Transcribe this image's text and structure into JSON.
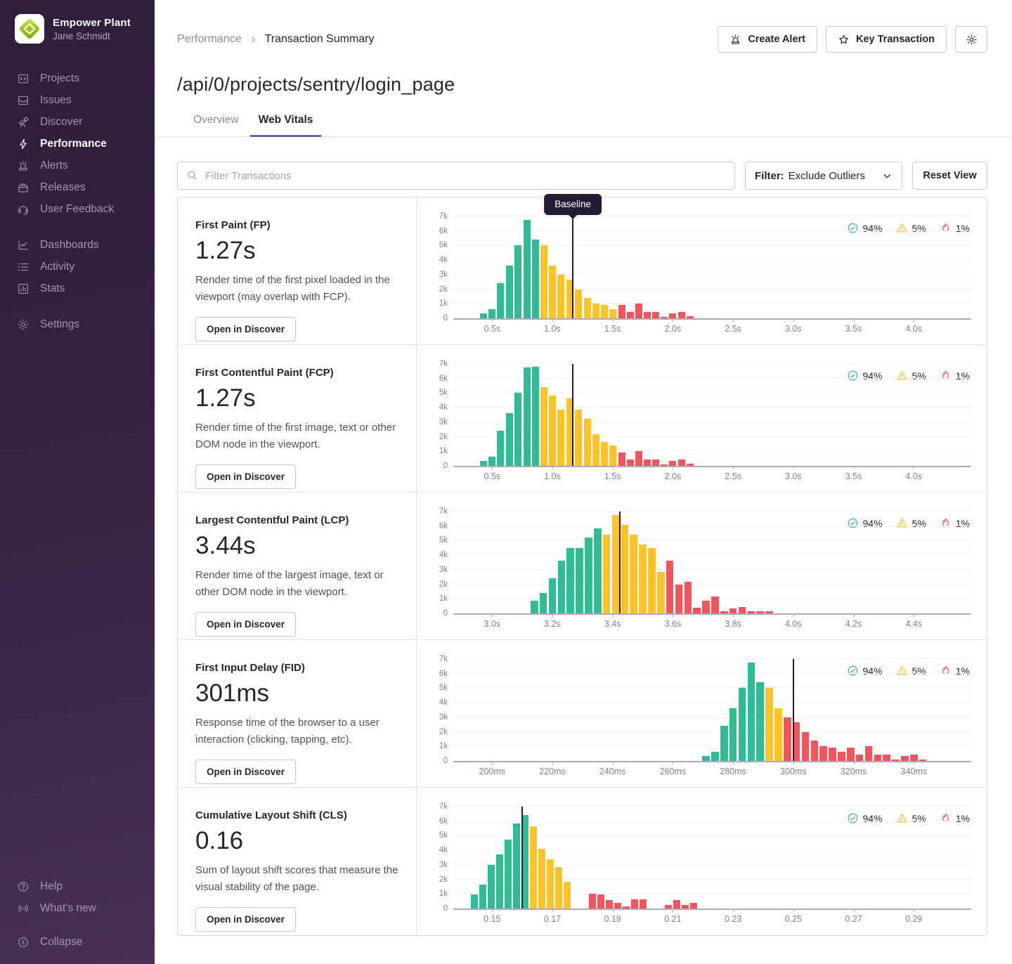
{
  "sidebar": {
    "org_name": "Empower Plant",
    "user_name": "Jane Schmidt",
    "primary": [
      {
        "label": "Projects"
      },
      {
        "label": "Issues"
      },
      {
        "label": "Discover"
      },
      {
        "label": "Performance",
        "active": true
      },
      {
        "label": "Alerts"
      },
      {
        "label": "Releases"
      },
      {
        "label": "User Feedback"
      }
    ],
    "secondary": [
      {
        "label": "Dashboards"
      },
      {
        "label": "Activity"
      },
      {
        "label": "Stats"
      }
    ],
    "tertiary": [
      {
        "label": "Settings"
      }
    ],
    "footer": [
      {
        "label": "Help"
      },
      {
        "label": "What’s new"
      }
    ],
    "collapse_label": "Collapse"
  },
  "header": {
    "breadcrumb_parent": "Performance",
    "breadcrumb_current": "Transaction Summary",
    "create_alert_label": "Create Alert",
    "key_transaction_label": "Key Transaction",
    "title": "/api/0/projects/sentry/login_page",
    "tabs": [
      {
        "label": "Overview",
        "active": false
      },
      {
        "label": "Web Vitals",
        "active": true
      }
    ]
  },
  "toolbar": {
    "search_placeholder": "Filter Transactions",
    "filter_label": "Filter:",
    "filter_value": "Exclude Outliers",
    "reset_label": "Reset View"
  },
  "baseline_tooltip": "Baseline",
  "colors": {
    "good": "#2fbc95",
    "meh": "#ffc227",
    "poor": "#f4555c",
    "baseline": "#231a36",
    "accent": "#6c5fc7"
  },
  "chart_data": [
    {
      "type": "bar",
      "name": "First Paint (FP)",
      "value": "1.27s",
      "description": "Render time of the first pixel loaded in the viewport (may overlap with FCP).",
      "button_label": "Open in Discover",
      "rates": {
        "good": "94%",
        "meh": "5%",
        "poor": "1%"
      },
      "ylim": [
        0,
        7000
      ],
      "yticks": [
        "0",
        "1k",
        "2k",
        "3k",
        "4k",
        "5k",
        "6k",
        "7k"
      ],
      "xticks": [
        "0.5s",
        "1.0s",
        "1.5s",
        "2.0s",
        "2.5s",
        "3.0s",
        "3.5s",
        "4.0s"
      ],
      "axis": {
        "tick0": 0.5,
        "tick_step": 0.5,
        "bar_width": 0.058
      },
      "baseline": 1.17,
      "show_baseline_tooltip": true,
      "bars": [
        {
          "x": 0.43,
          "y": 350,
          "status": "good"
        },
        {
          "x": 0.5,
          "y": 650,
          "status": "good"
        },
        {
          "x": 0.57,
          "y": 2400,
          "status": "good"
        },
        {
          "x": 0.645,
          "y": 3600,
          "status": "good"
        },
        {
          "x": 0.715,
          "y": 5000,
          "status": "good"
        },
        {
          "x": 0.79,
          "y": 6750,
          "status": "good"
        },
        {
          "x": 0.86,
          "y": 5400,
          "status": "good"
        },
        {
          "x": 0.93,
          "y": 5000,
          "status": "meh"
        },
        {
          "x": 1.0,
          "y": 3600,
          "status": "meh"
        },
        {
          "x": 1.07,
          "y": 3000,
          "status": "meh"
        },
        {
          "x": 1.145,
          "y": 2650,
          "status": "meh"
        },
        {
          "x": 1.215,
          "y": 2000,
          "status": "meh"
        },
        {
          "x": 1.29,
          "y": 1400,
          "status": "meh"
        },
        {
          "x": 1.36,
          "y": 1000,
          "status": "meh"
        },
        {
          "x": 1.43,
          "y": 900,
          "status": "meh"
        },
        {
          "x": 1.5,
          "y": 650,
          "status": "meh"
        },
        {
          "x": 1.575,
          "y": 900,
          "status": "poor"
        },
        {
          "x": 1.645,
          "y": 450,
          "status": "poor"
        },
        {
          "x": 1.72,
          "y": 1000,
          "status": "poor"
        },
        {
          "x": 1.79,
          "y": 450,
          "status": "poor"
        },
        {
          "x": 1.86,
          "y": 450,
          "status": "poor"
        },
        {
          "x": 1.93,
          "y": 120,
          "status": "poor"
        },
        {
          "x": 2.0,
          "y": 350,
          "status": "poor"
        },
        {
          "x": 2.075,
          "y": 450,
          "status": "poor"
        },
        {
          "x": 2.145,
          "y": 150,
          "status": "poor"
        }
      ]
    },
    {
      "type": "bar",
      "name": "First Contentful Paint (FCP)",
      "value": "1.27s",
      "description": "Render time of the first image, text or other DOM node in the viewport.",
      "button_label": "Open in Discover",
      "rates": {
        "good": "94%",
        "meh": "5%",
        "poor": "1%"
      },
      "ylim": [
        0,
        7000
      ],
      "yticks": [
        "0",
        "1k",
        "2k",
        "3k",
        "4k",
        "5k",
        "6k",
        "7k"
      ],
      "xticks": [
        "0.5s",
        "1.0s",
        "1.5s",
        "2.0s",
        "2.5s",
        "3.0s",
        "3.5s",
        "4.0s"
      ],
      "axis": {
        "tick0": 0.5,
        "tick_step": 0.5,
        "bar_width": 0.058
      },
      "baseline": 1.17,
      "show_baseline_tooltip": false,
      "bars": [
        {
          "x": 0.43,
          "y": 350,
          "status": "good"
        },
        {
          "x": 0.5,
          "y": 650,
          "status": "good"
        },
        {
          "x": 0.57,
          "y": 2400,
          "status": "good"
        },
        {
          "x": 0.645,
          "y": 3600,
          "status": "good"
        },
        {
          "x": 0.715,
          "y": 5000,
          "status": "good"
        },
        {
          "x": 0.79,
          "y": 6750,
          "status": "good"
        },
        {
          "x": 0.86,
          "y": 6800,
          "status": "good"
        },
        {
          "x": 0.93,
          "y": 5400,
          "status": "meh"
        },
        {
          "x": 1.0,
          "y": 4850,
          "status": "meh"
        },
        {
          "x": 1.07,
          "y": 3850,
          "status": "meh"
        },
        {
          "x": 1.145,
          "y": 4650,
          "status": "meh"
        },
        {
          "x": 1.215,
          "y": 3850,
          "status": "meh"
        },
        {
          "x": 1.29,
          "y": 3250,
          "status": "meh"
        },
        {
          "x": 1.36,
          "y": 2150,
          "status": "meh"
        },
        {
          "x": 1.43,
          "y": 1650,
          "status": "meh"
        },
        {
          "x": 1.5,
          "y": 1400,
          "status": "meh"
        },
        {
          "x": 1.575,
          "y": 900,
          "status": "poor"
        },
        {
          "x": 1.645,
          "y": 450,
          "status": "poor"
        },
        {
          "x": 1.72,
          "y": 1000,
          "status": "poor"
        },
        {
          "x": 1.79,
          "y": 450,
          "status": "poor"
        },
        {
          "x": 1.86,
          "y": 450,
          "status": "poor"
        },
        {
          "x": 1.93,
          "y": 120,
          "status": "poor"
        },
        {
          "x": 2.0,
          "y": 350,
          "status": "poor"
        },
        {
          "x": 2.075,
          "y": 450,
          "status": "poor"
        },
        {
          "x": 2.145,
          "y": 150,
          "status": "poor"
        }
      ]
    },
    {
      "type": "bar",
      "name": "Largest Contentful Paint (LCP)",
      "value": "3.44s",
      "description": "Render time of the largest image, text or other DOM node in the viewport.",
      "button_label": "Open in Discover",
      "rates": {
        "good": "94%",
        "meh": "5%",
        "poor": "1%"
      },
      "ylim": [
        0,
        7000
      ],
      "yticks": [
        "0",
        "1k",
        "2k",
        "3k",
        "4k",
        "5k",
        "6k",
        "7k"
      ],
      "xticks": [
        "3.0s",
        "3.2s",
        "3.4s",
        "3.6s",
        "3.8s",
        "4.0s",
        "4.2s",
        "4.4s"
      ],
      "axis": {
        "tick0": 3.0,
        "tick_step": 0.2,
        "bar_width": 0.0245
      },
      "baseline": 3.425,
      "show_baseline_tooltip": false,
      "bars": [
        {
          "x": 3.14,
          "y": 850,
          "status": "good"
        },
        {
          "x": 3.17,
          "y": 1400,
          "status": "good"
        },
        {
          "x": 3.2,
          "y": 2400,
          "status": "good"
        },
        {
          "x": 3.23,
          "y": 3600,
          "status": "good"
        },
        {
          "x": 3.26,
          "y": 4500,
          "status": "good"
        },
        {
          "x": 3.29,
          "y": 4500,
          "status": "good"
        },
        {
          "x": 3.32,
          "y": 5200,
          "status": "good"
        },
        {
          "x": 3.35,
          "y": 5850,
          "status": "good"
        },
        {
          "x": 3.38,
          "y": 5400,
          "status": "meh"
        },
        {
          "x": 3.41,
          "y": 6750,
          "status": "meh"
        },
        {
          "x": 3.44,
          "y": 6100,
          "status": "meh"
        },
        {
          "x": 3.47,
          "y": 5400,
          "status": "meh"
        },
        {
          "x": 3.5,
          "y": 4750,
          "status": "meh"
        },
        {
          "x": 3.53,
          "y": 4500,
          "status": "meh"
        },
        {
          "x": 3.56,
          "y": 2850,
          "status": "meh"
        },
        {
          "x": 3.59,
          "y": 3600,
          "status": "poor"
        },
        {
          "x": 3.62,
          "y": 2000,
          "status": "poor"
        },
        {
          "x": 3.65,
          "y": 2150,
          "status": "poor"
        },
        {
          "x": 3.68,
          "y": 400,
          "status": "poor"
        },
        {
          "x": 3.71,
          "y": 850,
          "status": "poor"
        },
        {
          "x": 3.74,
          "y": 1150,
          "status": "poor"
        },
        {
          "x": 3.77,
          "y": 150,
          "status": "poor"
        },
        {
          "x": 3.8,
          "y": 350,
          "status": "poor"
        },
        {
          "x": 3.83,
          "y": 450,
          "status": "poor"
        },
        {
          "x": 3.86,
          "y": 150,
          "status": "poor"
        },
        {
          "x": 3.89,
          "y": 150,
          "status": "poor"
        },
        {
          "x": 3.92,
          "y": 150,
          "status": "poor"
        }
      ]
    },
    {
      "type": "bar",
      "name": "First Input Delay (FID)",
      "value": "301ms",
      "description": "Response time of the browser to a user interaction (clicking, tapping, etc).",
      "button_label": "Open in Discover",
      "rates": {
        "good": "94%",
        "meh": "5%",
        "poor": "1%"
      },
      "ylim": [
        0,
        7000
      ],
      "yticks": [
        "0",
        "1k",
        "2k",
        "3k",
        "4k",
        "5k",
        "6k",
        "7k"
      ],
      "xticks": [
        "200ms",
        "220ms",
        "240ms",
        "260ms",
        "280ms",
        "300ms",
        "320ms",
        "340ms"
      ],
      "axis": {
        "tick0": 200,
        "tick_step": 20,
        "bar_width": 2.45
      },
      "baseline": 300,
      "show_baseline_tooltip": false,
      "bars": [
        {
          "x": 271,
          "y": 350,
          "status": "good"
        },
        {
          "x": 274,
          "y": 650,
          "status": "good"
        },
        {
          "x": 277,
          "y": 2400,
          "status": "good"
        },
        {
          "x": 280,
          "y": 3600,
          "status": "good"
        },
        {
          "x": 283,
          "y": 5000,
          "status": "good"
        },
        {
          "x": 286,
          "y": 6750,
          "status": "good"
        },
        {
          "x": 289,
          "y": 5400,
          "status": "good"
        },
        {
          "x": 292,
          "y": 5000,
          "status": "meh"
        },
        {
          "x": 295,
          "y": 3600,
          "status": "meh"
        },
        {
          "x": 298,
          "y": 3000,
          "status": "poor"
        },
        {
          "x": 301,
          "y": 2650,
          "status": "poor"
        },
        {
          "x": 304,
          "y": 2000,
          "status": "poor"
        },
        {
          "x": 307,
          "y": 1400,
          "status": "poor"
        },
        {
          "x": 310,
          "y": 1000,
          "status": "poor"
        },
        {
          "x": 313,
          "y": 900,
          "status": "poor"
        },
        {
          "x": 316,
          "y": 650,
          "status": "poor"
        },
        {
          "x": 319,
          "y": 900,
          "status": "poor"
        },
        {
          "x": 322,
          "y": 450,
          "status": "poor"
        },
        {
          "x": 325,
          "y": 1000,
          "status": "poor"
        },
        {
          "x": 328,
          "y": 450,
          "status": "poor"
        },
        {
          "x": 331,
          "y": 450,
          "status": "poor"
        },
        {
          "x": 334,
          "y": 120,
          "status": "poor"
        },
        {
          "x": 337,
          "y": 350,
          "status": "poor"
        },
        {
          "x": 340,
          "y": 450,
          "status": "poor"
        },
        {
          "x": 343,
          "y": 120,
          "status": "poor"
        }
      ]
    },
    {
      "type": "bar",
      "name": "Cumulative Layout Shift (CLS)",
      "value": "0.16",
      "description": "Sum of layout shift scores that measure the visual stability of the page.",
      "button_label": "Open in Discover",
      "rates": {
        "good": "94%",
        "meh": "5%",
        "poor": "1%"
      },
      "ylim": [
        0,
        7000
      ],
      "yticks": [
        "0",
        "1k",
        "2k",
        "3k",
        "4k",
        "5k",
        "6k",
        "7k"
      ],
      "xticks": [
        "0.15",
        "0.17",
        "0.19",
        "0.21",
        "0.23",
        "0.25",
        "0.27",
        "0.29"
      ],
      "axis": {
        "tick0": 0.15,
        "tick_step": 0.02,
        "bar_width": 0.00235
      },
      "baseline": 0.16,
      "show_baseline_tooltip": false,
      "bars": [
        {
          "x": 0.144,
          "y": 950,
          "status": "good"
        },
        {
          "x": 0.1468,
          "y": 1650,
          "status": "good"
        },
        {
          "x": 0.1496,
          "y": 3000,
          "status": "good"
        },
        {
          "x": 0.1524,
          "y": 3700,
          "status": "good"
        },
        {
          "x": 0.1552,
          "y": 4750,
          "status": "good"
        },
        {
          "x": 0.158,
          "y": 5850,
          "status": "good"
        },
        {
          "x": 0.1608,
          "y": 6400,
          "status": "good"
        },
        {
          "x": 0.1636,
          "y": 5650,
          "status": "meh"
        },
        {
          "x": 0.1664,
          "y": 4100,
          "status": "meh"
        },
        {
          "x": 0.1692,
          "y": 3400,
          "status": "meh"
        },
        {
          "x": 0.172,
          "y": 2850,
          "status": "meh"
        },
        {
          "x": 0.1748,
          "y": 1850,
          "status": "meh"
        },
        {
          "x": 0.1832,
          "y": 1000,
          "status": "poor"
        },
        {
          "x": 0.186,
          "y": 950,
          "status": "poor"
        },
        {
          "x": 0.1888,
          "y": 600,
          "status": "poor"
        },
        {
          "x": 0.1916,
          "y": 400,
          "status": "poor"
        },
        {
          "x": 0.1944,
          "y": 150,
          "status": "poor"
        },
        {
          "x": 0.1972,
          "y": 620,
          "status": "poor"
        },
        {
          "x": 0.2,
          "y": 620,
          "status": "poor"
        },
        {
          "x": 0.2084,
          "y": 250,
          "status": "poor"
        },
        {
          "x": 0.2112,
          "y": 600,
          "status": "poor"
        },
        {
          "x": 0.214,
          "y": 250,
          "status": "poor"
        },
        {
          "x": 0.2168,
          "y": 400,
          "status": "poor"
        }
      ]
    }
  ]
}
